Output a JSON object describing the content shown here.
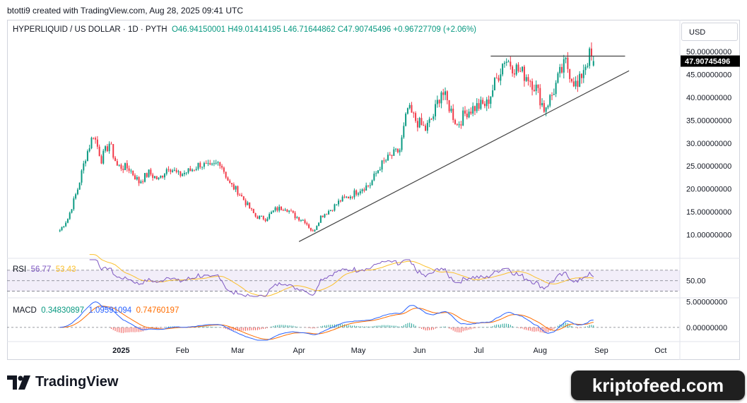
{
  "header": {
    "attribution": "btotti9 created with TradingView.com, Aug 28, 2025 09:41 UTC"
  },
  "legend": {
    "symbol": "HYPERLIQUID / US DOLLAR · 1D · PYTH",
    "open": "O46.94150001",
    "high": "H49.01414195",
    "low": "L46.71644862",
    "close": "C47.90745496",
    "change": "+0.96727709 (+2.06%)"
  },
  "currency_button": "USD",
  "price_tag": "47.90745496",
  "rsi_legend": {
    "name": "RSI",
    "value": "56.77",
    "ma": "53.43"
  },
  "macd_legend": {
    "name": "MACD",
    "macd": "0.34830897",
    "signal": "1.09591094",
    "hist": "0.74760197"
  },
  "branding": {
    "logo_text": "TradingView",
    "watermark": "kriptofeed.com"
  },
  "colors": {
    "up": "#089981",
    "down": "#f23645",
    "rsi": "#7e57c2",
    "rsi_ma": "#fbc02d",
    "macd": "#2962ff",
    "signal": "#ff6d00",
    "trendline": "#444444"
  },
  "chart_data": [
    {
      "type": "candlestick",
      "title": "HYPERLIQUID / US DOLLAR · 1D · PYTH",
      "x_ticks": [
        "2025",
        "Feb",
        "Mar",
        "Apr",
        "May",
        "Jun",
        "Jul",
        "Aug",
        "Sep",
        "Oct"
      ],
      "y_ticks": [
        "10.00000000",
        "15.00000000",
        "20.00000000",
        "25.00000000",
        "30.00000000",
        "35.00000000",
        "40.00000000",
        "45.00000000",
        "50.00000000"
      ],
      "ylim": [
        5,
        52
      ],
      "last_price": 47.90745496,
      "series": [
        {
          "name": "HYPE/USD close (approx.)",
          "points": [
            [
              "2024-12-01",
              11.0
            ],
            [
              "2024-12-05",
              13.5
            ],
            [
              "2024-12-10",
              20.0
            ],
            [
              "2024-12-14",
              27.0
            ],
            [
              "2024-12-18",
              32.0
            ],
            [
              "2024-12-22",
              26.5
            ],
            [
              "2024-12-26",
              30.0
            ],
            [
              "2024-12-30",
              25.0
            ],
            [
              "2025-01-05",
              24.5
            ],
            [
              "2025-01-10",
              21.5
            ],
            [
              "2025-01-15",
              23.5
            ],
            [
              "2025-01-20",
              22.0
            ],
            [
              "2025-01-25",
              25.0
            ],
            [
              "2025-01-30",
              23.0
            ],
            [
              "2025-02-05",
              24.0
            ],
            [
              "2025-02-10",
              25.5
            ],
            [
              "2025-02-15",
              24.5
            ],
            [
              "2025-02-20",
              26.0
            ],
            [
              "2025-02-25",
              21.0
            ],
            [
              "2025-03-01",
              19.5
            ],
            [
              "2025-03-05",
              17.0
            ],
            [
              "2025-03-10",
              14.0
            ],
            [
              "2025-03-15",
              13.5
            ],
            [
              "2025-03-20",
              15.5
            ],
            [
              "2025-03-25",
              16.0
            ],
            [
              "2025-03-30",
              14.0
            ],
            [
              "2025-04-04",
              13.0
            ],
            [
              "2025-04-08",
              10.5
            ],
            [
              "2025-04-12",
              14.0
            ],
            [
              "2025-04-17",
              15.5
            ],
            [
              "2025-04-22",
              17.5
            ],
            [
              "2025-04-27",
              18.5
            ],
            [
              "2025-05-02",
              20.0
            ],
            [
              "2025-05-07",
              21.0
            ],
            [
              "2025-05-12",
              25.0
            ],
            [
              "2025-05-17",
              27.0
            ],
            [
              "2025-05-22",
              28.5
            ],
            [
              "2025-05-26",
              37.5
            ],
            [
              "2025-05-30",
              35.0
            ],
            [
              "2025-06-04",
              33.0
            ],
            [
              "2025-06-08",
              36.0
            ],
            [
              "2025-06-12",
              41.5
            ],
            [
              "2025-06-16",
              38.0
            ],
            [
              "2025-06-20",
              34.0
            ],
            [
              "2025-06-25",
              37.0
            ],
            [
              "2025-06-30",
              38.0
            ],
            [
              "2025-07-05",
              38.5
            ],
            [
              "2025-07-10",
              44.0
            ],
            [
              "2025-07-14",
              48.5
            ],
            [
              "2025-07-18",
              47.0
            ],
            [
              "2025-07-22",
              45.5
            ],
            [
              "2025-07-26",
              44.5
            ],
            [
              "2025-07-30",
              42.0
            ],
            [
              "2025-08-03",
              37.5
            ],
            [
              "2025-08-07",
              40.5
            ],
            [
              "2025-08-11",
              45.0
            ],
            [
              "2025-08-14",
              47.5
            ],
            [
              "2025-08-17",
              44.5
            ],
            [
              "2025-08-20",
              42.0
            ],
            [
              "2025-08-23",
              46.5
            ],
            [
              "2025-08-26",
              49.0
            ],
            [
              "2025-08-28",
              47.9
            ]
          ]
        }
      ],
      "annotations": {
        "resistance_level": 49.0,
        "rising_support_line": [
          [
            "2025-04-01",
            8.5
          ],
          [
            "2025-09-15",
            45.8
          ]
        ]
      }
    },
    {
      "type": "line",
      "title": "RSI",
      "y_ticks": [
        "50.00"
      ],
      "ylim": [
        20,
        90
      ],
      "bands": [
        30,
        70
      ],
      "series": [
        {
          "name": "RSI",
          "last": 56.77
        },
        {
          "name": "RSI MA",
          "last": 53.43
        }
      ]
    },
    {
      "type": "line",
      "title": "MACD",
      "y_ticks": [
        "5.00000000",
        "0.00000000"
      ],
      "series": [
        {
          "name": "MACD",
          "last": 0.34830897
        },
        {
          "name": "Signal",
          "last": 1.09591094
        },
        {
          "name": "Histogram",
          "last": 0.74760197
        }
      ]
    }
  ]
}
